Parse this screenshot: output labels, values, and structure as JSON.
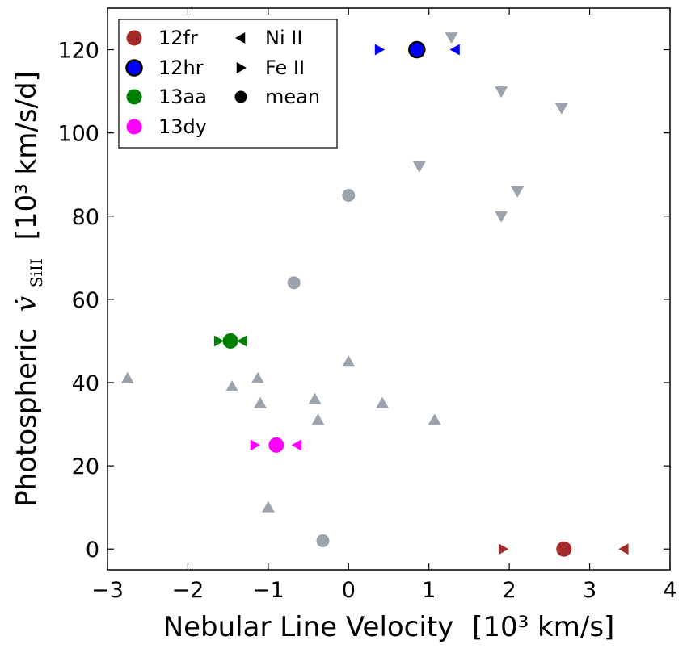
{
  "chart_data": {
    "type": "scatter",
    "xlabel": "Nebular Line Velocity",
    "xlabel_unit": "[10³ km/s]",
    "ylabel": "Photospheric",
    "ylabel_symbol": "v̇",
    "ylabel_subscript": "SiII",
    "ylabel_unit": "[10³ km/s/d]",
    "xlim": [
      -3,
      4
    ],
    "ylim": [
      -5,
      130
    ],
    "xticks": [
      -3,
      -2,
      -1,
      0,
      1,
      2,
      3,
      4
    ],
    "xtick_labels": [
      "−3",
      "−2",
      "−1",
      "0",
      "1",
      "2",
      "3",
      "4"
    ],
    "yticks": [
      0,
      20,
      40,
      60,
      80,
      100,
      120
    ],
    "ytick_labels": [
      "0",
      "20",
      "40",
      "60",
      "80",
      "100",
      "120"
    ],
    "grid": false,
    "legend_position": "top-left",
    "background_color": "#9aa3ae",
    "background_series": {
      "circles": [
        [
          0.0,
          85
        ],
        [
          -0.68,
          64
        ],
        [
          -0.32,
          2
        ]
      ],
      "triangles_down": [
        [
          1.28,
          123
        ],
        [
          1.9,
          110
        ],
        [
          2.65,
          106
        ],
        [
          0.88,
          92
        ],
        [
          2.1,
          86
        ],
        [
          1.9,
          80
        ]
      ],
      "triangles_up": [
        [
          -2.75,
          41
        ],
        [
          -1.45,
          39
        ],
        [
          -1.13,
          41
        ],
        [
          -1.1,
          35
        ],
        [
          -0.42,
          36
        ],
        [
          -0.38,
          31
        ],
        [
          0.0,
          45
        ],
        [
          0.42,
          35
        ],
        [
          1.07,
          31
        ],
        [
          -1.0,
          10
        ]
      ]
    },
    "series": [
      {
        "name": "12fr",
        "color": "#a52a2a",
        "edge": "none",
        "mean": [
          2.68,
          0
        ],
        "fe_ii": [
          1.92,
          0
        ],
        "ni_ii": [
          3.43,
          0
        ]
      },
      {
        "name": "12hr",
        "color": "#0000ff",
        "edge": "#000000",
        "mean": [
          0.85,
          120
        ],
        "fe_ii": [
          0.38,
          120
        ],
        "ni_ii": [
          1.33,
          120
        ]
      },
      {
        "name": "13aa",
        "color": "#008000",
        "edge": "none",
        "mean": [
          -1.47,
          50
        ],
        "fe_ii": [
          -1.62,
          50
        ],
        "ni_ii": [
          -1.32,
          50
        ]
      },
      {
        "name": "13dy",
        "color": "#ff00ff",
        "edge": "none",
        "mean": [
          -0.9,
          25
        ],
        "fe_ii": [
          -1.17,
          25
        ],
        "ni_ii": [
          -0.64,
          25
        ]
      }
    ],
    "legend": {
      "col1": [
        {
          "label": "12fr",
          "color": "#a52a2a",
          "edge": "none"
        },
        {
          "label": "12hr",
          "color": "#0000ff",
          "edge": "#000000"
        },
        {
          "label": "13aa",
          "color": "#008000",
          "edge": "none"
        },
        {
          "label": "13dy",
          "color": "#ff00ff",
          "edge": "none"
        }
      ],
      "col2": [
        {
          "label": "Ni II",
          "marker": "triangle-left"
        },
        {
          "label": "Fe II",
          "marker": "triangle-right"
        },
        {
          "label": "mean",
          "marker": "circle"
        }
      ]
    }
  }
}
